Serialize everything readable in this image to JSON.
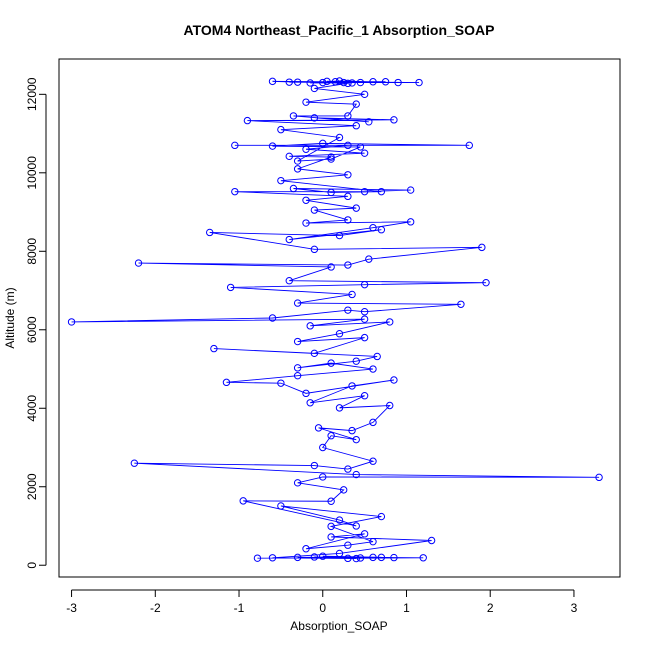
{
  "chart_data": {
    "type": "line",
    "title": "ATOM4 Northeast_Pacific_1 Absorption_SOAP",
    "xlabel": "Absorption_SOAP",
    "ylabel": "Altitude (m)",
    "xlim": [
      -3.15,
      3.55
    ],
    "ylim": [
      -300,
      12900
    ],
    "xticks": [
      -3,
      -2,
      -1,
      0,
      1,
      2,
      3
    ],
    "yticks": [
      0,
      2000,
      4000,
      6000,
      8000,
      10000,
      12000
    ],
    "series_color": "#0000ff",
    "markers": "open-circle",
    "series": [
      {
        "values": [
          [
            -0.78,
            180
          ],
          [
            0.6,
            200
          ],
          [
            1.2,
            190
          ],
          [
            0.3,
            175
          ],
          [
            -0.1,
            210
          ],
          [
            0.45,
            185
          ],
          [
            0.7,
            200
          ],
          [
            -0.3,
            200
          ],
          [
            0.85,
            195
          ],
          [
            0.0,
            230
          ],
          [
            0.4,
            170
          ],
          [
            -0.6,
            190
          ],
          [
            0.2,
            300
          ],
          [
            1.3,
            630
          ],
          [
            0.1,
            720
          ],
          [
            0.5,
            800
          ],
          [
            -0.2,
            420
          ],
          [
            0.3,
            510
          ],
          [
            0.6,
            600
          ],
          [
            0.1,
            990
          ],
          [
            0.7,
            1240
          ],
          [
            -0.5,
            1510
          ],
          [
            0.2,
            1150
          ],
          [
            0.4,
            1000
          ],
          [
            -0.95,
            1640
          ],
          [
            0.1,
            1630
          ],
          [
            0.25,
            1920
          ],
          [
            -0.3,
            2100
          ],
          [
            0.0,
            2250
          ],
          [
            3.3,
            2240
          ],
          [
            0.4,
            2310
          ],
          [
            -2.25,
            2600
          ],
          [
            -0.1,
            2540
          ],
          [
            0.3,
            2450
          ],
          [
            0.6,
            2650
          ],
          [
            0.0,
            3000
          ],
          [
            0.1,
            3300
          ],
          [
            0.4,
            3200
          ],
          [
            -0.05,
            3500
          ],
          [
            0.35,
            3430
          ],
          [
            0.6,
            3640
          ],
          [
            0.8,
            4070
          ],
          [
            0.2,
            4010
          ],
          [
            0.5,
            4320
          ],
          [
            -0.15,
            4140
          ],
          [
            0.35,
            4570
          ],
          [
            0.85,
            4720
          ],
          [
            -0.2,
            4380
          ],
          [
            -0.5,
            4640
          ],
          [
            -1.15,
            4660
          ],
          [
            -0.3,
            4830
          ],
          [
            0.6,
            5000
          ],
          [
            0.1,
            5150
          ],
          [
            -0.3,
            5030
          ],
          [
            0.4,
            5200
          ],
          [
            0.65,
            5320
          ],
          [
            -1.3,
            5520
          ],
          [
            -0.1,
            5400
          ],
          [
            0.5,
            5800
          ],
          [
            -0.3,
            5700
          ],
          [
            0.2,
            5900
          ],
          [
            0.8,
            6200
          ],
          [
            -0.15,
            6100
          ],
          [
            0.5,
            6270
          ],
          [
            -3.0,
            6200
          ],
          [
            -0.6,
            6300
          ],
          [
            0.3,
            6500
          ],
          [
            0.5,
            6460
          ],
          [
            1.65,
            6650
          ],
          [
            -0.3,
            6680
          ],
          [
            0.35,
            6900
          ],
          [
            -1.1,
            7080
          ],
          [
            0.5,
            7150
          ],
          [
            1.95,
            7200
          ],
          [
            -0.4,
            7250
          ],
          [
            0.1,
            7600
          ],
          [
            -2.2,
            7700
          ],
          [
            0.3,
            7650
          ],
          [
            0.55,
            7800
          ],
          [
            1.9,
            8100
          ],
          [
            -0.1,
            8050
          ],
          [
            -1.35,
            8480
          ],
          [
            0.2,
            8400
          ],
          [
            0.7,
            8550
          ],
          [
            -0.4,
            8300
          ],
          [
            0.6,
            8600
          ],
          [
            1.05,
            8750
          ],
          [
            -0.2,
            8720
          ],
          [
            0.3,
            8800
          ],
          [
            -0.1,
            9050
          ],
          [
            0.4,
            9100
          ],
          [
            -0.2,
            9300
          ],
          [
            0.3,
            9400
          ],
          [
            -1.05,
            9520
          ],
          [
            0.5,
            9520
          ],
          [
            1.05,
            9560
          ],
          [
            -0.35,
            9600
          ],
          [
            0.1,
            9500
          ],
          [
            0.7,
            9520
          ],
          [
            -0.5,
            9800
          ],
          [
            0.3,
            9950
          ],
          [
            -0.3,
            10100
          ],
          [
            0.1,
            10400
          ],
          [
            -0.4,
            10420
          ],
          [
            0.5,
            10500
          ],
          [
            -0.2,
            10600
          ],
          [
            0.3,
            10700
          ],
          [
            -1.05,
            10700
          ],
          [
            1.75,
            10700
          ],
          [
            0.0,
            10750
          ],
          [
            -0.6,
            10680
          ],
          [
            0.45,
            10660
          ],
          [
            0.1,
            10350
          ],
          [
            -0.3,
            10300
          ],
          [
            0.2,
            10900
          ],
          [
            -0.5,
            11100
          ],
          [
            0.4,
            11200
          ],
          [
            -0.9,
            11330
          ],
          [
            0.85,
            11350
          ],
          [
            -0.1,
            11400
          ],
          [
            0.55,
            11300
          ],
          [
            -0.35,
            11450
          ],
          [
            0.3,
            11450
          ],
          [
            0.4,
            11750
          ],
          [
            -0.2,
            11800
          ],
          [
            0.5,
            12000
          ],
          [
            -0.1,
            12150
          ],
          [
            0.3,
            12280
          ],
          [
            -0.6,
            12330
          ],
          [
            1.15,
            12300
          ],
          [
            0.0,
            12300
          ],
          [
            0.6,
            12320
          ],
          [
            -0.4,
            12310
          ],
          [
            0.9,
            12300
          ],
          [
            0.2,
            12340
          ],
          [
            -0.15,
            12290
          ],
          [
            0.45,
            12300
          ],
          [
            0.05,
            12330
          ],
          [
            0.75,
            12320
          ],
          [
            -0.3,
            12310
          ],
          [
            0.25,
            12300
          ],
          [
            0.35,
            12290
          ],
          [
            0.15,
            12320
          ]
        ]
      }
    ]
  }
}
